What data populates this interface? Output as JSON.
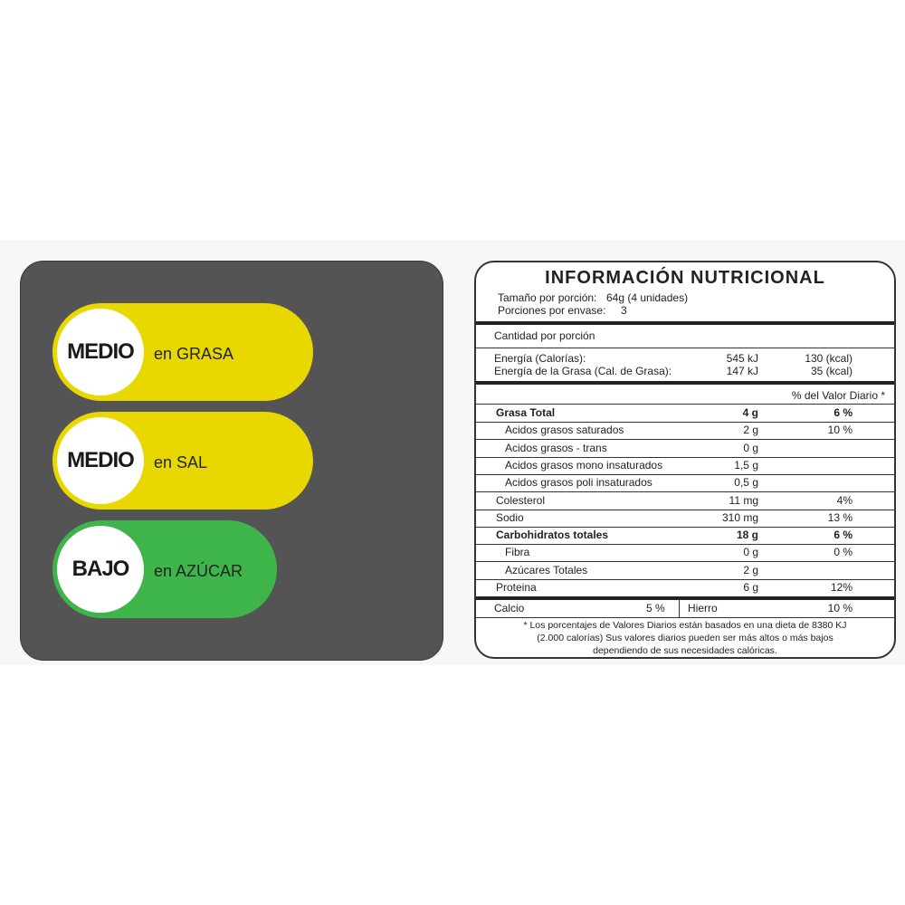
{
  "semaphore": [
    {
      "level": "MEDIO",
      "text": "en GRASA",
      "color": "#e8d800"
    },
    {
      "level": "MEDIO",
      "text": "en SAL",
      "color": "#e8d800"
    },
    {
      "level": "BAJO",
      "text": "en AZÚCAR",
      "color": "#3db54a"
    }
  ],
  "nutrition": {
    "title": "INFORMACIÓN NUTRICIONAL",
    "serving_label": "Tamaño por porción:",
    "serving_value": "64g (4 unidades)",
    "portions_label": "Porciones por envase:",
    "portions_value": "3",
    "amount_header": "Cantidad por porción",
    "energy": [
      {
        "name": "Energía (Calorías):",
        "kj": "545 kJ",
        "kcal": "130 (kcal)"
      },
      {
        "name": "Energía de la Grasa (Cal. de Grasa):",
        "kj": "147 kJ",
        "kcal": "35 (kcal)"
      }
    ],
    "dv_header": "% del Valor Diario *",
    "rows": [
      {
        "name": "Grasa Total",
        "amount": "4 g",
        "dv": "6 %",
        "bold": true,
        "indent": false
      },
      {
        "name": "Acidos grasos saturados",
        "amount": "2 g",
        "dv": "10 %",
        "bold": false,
        "indent": true
      },
      {
        "name": "Acidos grasos - trans",
        "amount": "0 g",
        "dv": "",
        "bold": false,
        "indent": true
      },
      {
        "name": "Acidos grasos mono insaturados",
        "amount": "1,5 g",
        "dv": "",
        "bold": false,
        "indent": true
      },
      {
        "name": "Acidos grasos poli insaturados",
        "amount": "0,5 g",
        "dv": "",
        "bold": false,
        "indent": true
      },
      {
        "name": "Colesterol",
        "amount": "11 mg",
        "dv": "4%",
        "bold": false,
        "indent": false
      },
      {
        "name": "Sodio",
        "amount": "310 mg",
        "dv": "13 %",
        "bold": false,
        "indent": false
      },
      {
        "name": "Carbohidratos totales",
        "amount": "18 g",
        "dv": "6 %",
        "bold": true,
        "indent": false
      },
      {
        "name": "Fibra",
        "amount": "0 g",
        "dv": "0 %",
        "bold": false,
        "indent": true
      },
      {
        "name": "Azúcares Totales",
        "amount": "2 g",
        "dv": "",
        "bold": false,
        "indent": true
      },
      {
        "name": "Proteina",
        "amount": "6 g",
        "dv": "12%",
        "bold": false,
        "indent": false
      }
    ],
    "calcio_label": "Calcio",
    "calcio_value": "5 %",
    "hierro_label": "Hierro",
    "hierro_value": "10 %",
    "footnote": "* Los porcentajes de Valores Diarios están basados en una dieta de 8380 KJ (2.000 calorías) Sus valores diarios pueden ser más altos o más bajos dependiendo de sus necesidades calóricas."
  }
}
